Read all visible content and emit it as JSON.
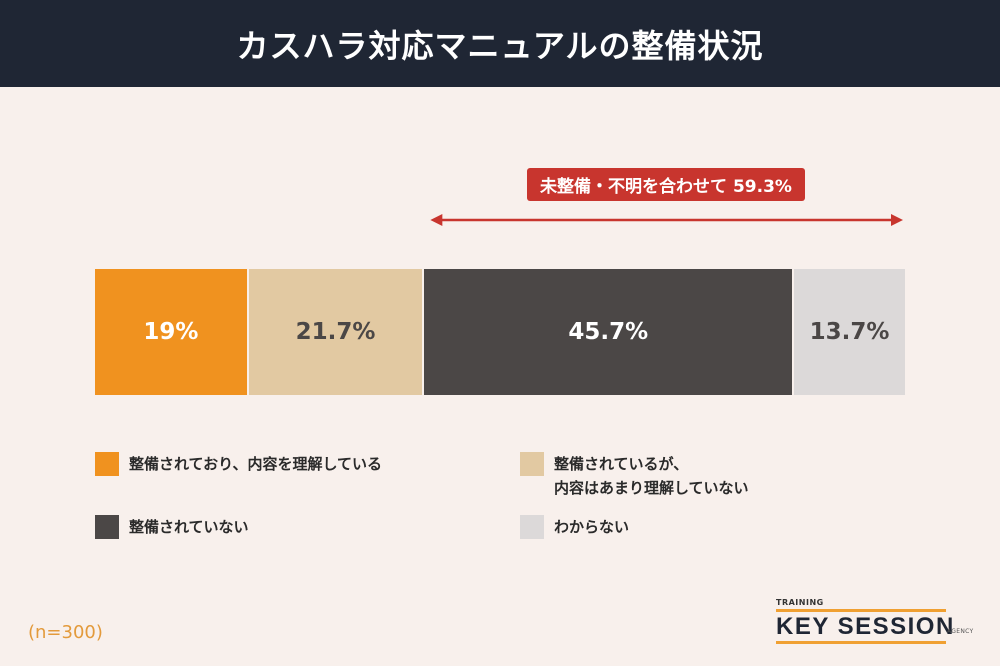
{
  "title": "カスハラ対応マニュアルの整備状況",
  "callout": "未整備・不明を合わせて 59.3%",
  "note": "(n=300)",
  "logo": {
    "top": "TRAINING",
    "brand": "KEY SESSION",
    "bottom": "AGENCY"
  },
  "colors": {
    "header": "#1f2634",
    "callout": "#c8352e",
    "background": "#f8f0ec"
  },
  "chart_data": {
    "type": "bar",
    "orientation": "horizontal-stacked-100",
    "categories": [
      "整備されており、内容を理解している",
      "整備されているが、内容はあまり理解していない",
      "整備されていない",
      "わからない"
    ],
    "values": [
      19,
      21.7,
      45.7,
      13.7
    ],
    "labels": [
      "19%",
      "21.7%",
      "45.7%",
      "13.7%"
    ],
    "colors": [
      "#f0921f",
      "#e2c9a2",
      "#4b4746",
      "#dcd9d9"
    ],
    "label_colors": [
      "#ffffff",
      "#4b4746",
      "#ffffff",
      "#4b4746"
    ],
    "legend": [
      {
        "lines": [
          "整備されており、内容を理解している"
        ],
        "color": "#f0921f"
      },
      {
        "lines": [
          "整備されているが、",
          "内容はあまり理解していない"
        ],
        "color": "#e2c9a2"
      },
      {
        "lines": [
          "整備されていない"
        ],
        "color": "#4b4746"
      },
      {
        "lines": [
          "わからない"
        ],
        "color": "#dcd9d9"
      }
    ],
    "range_annotation": {
      "label": "未整備・不明を合わせて 59.3%",
      "from_segment": 2,
      "to_segment": 3
    },
    "grid": false
  }
}
